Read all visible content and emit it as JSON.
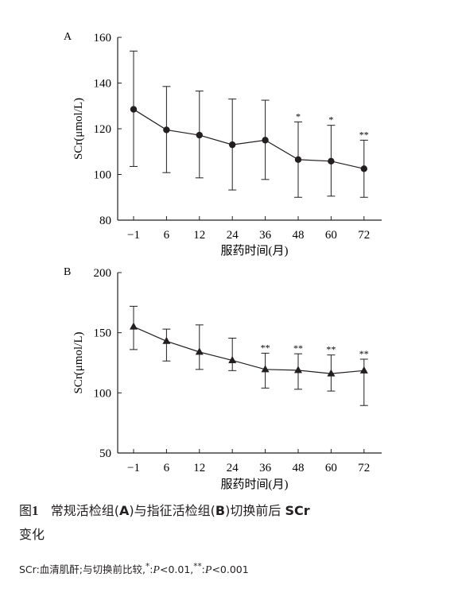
{
  "chart_data": [
    {
      "type": "line",
      "panel_label": "A",
      "marker": "circle",
      "xlabel": "服药时间(月)",
      "ylabel": "SCr(μmol/L)",
      "categories": [
        "−1",
        "6",
        "12",
        "24",
        "36",
        "48",
        "60",
        "72"
      ],
      "values": [
        128.5,
        119.5,
        117.2,
        113,
        115,
        106.5,
        105.8,
        102.5
      ],
      "error_upper": [
        154,
        138.5,
        136.5,
        133,
        132.5,
        123,
        121.5,
        115
      ],
      "error_lower": [
        103.5,
        100.8,
        98.5,
        93.2,
        97.8,
        90,
        90.5,
        90
      ],
      "significance": [
        "",
        "",
        "",
        "",
        "",
        "*",
        "*",
        "**"
      ],
      "ylim": [
        80,
        160
      ],
      "yticks": [
        "80",
        "100",
        "120",
        "140",
        "160"
      ],
      "grid": false
    },
    {
      "type": "line",
      "panel_label": "B",
      "marker": "triangle",
      "xlabel": "服药时间(月)",
      "ylabel": "SCr(μmol/L)",
      "categories": [
        "−1",
        "6",
        "12",
        "24",
        "36",
        "48",
        "60",
        "72"
      ],
      "values": [
        155,
        143,
        134,
        127,
        119.5,
        118.8,
        116,
        118.5
      ],
      "error_upper": [
        172,
        153,
        156.5,
        145.5,
        133,
        132.5,
        131.5,
        128
      ],
      "error_lower": [
        136,
        126.5,
        119.5,
        118.5,
        104,
        103,
        101.5,
        89.5
      ],
      "significance": [
        "",
        "",
        "",
        "",
        "**",
        "**",
        "**",
        "**"
      ],
      "ylim": [
        50,
        200
      ],
      "yticks": [
        "50",
        "100",
        "150",
        "200"
      ],
      "grid": false
    }
  ],
  "caption": {
    "fig_label": "图",
    "fig_num": "1",
    "text_a": "常规活检组(",
    "a": "A",
    "text_b": ")与指征活检组(",
    "b": "B",
    "text_c": ")切换前后",
    "scr": "SCr",
    "line2": "变化"
  },
  "note": {
    "prefix": "SCr:血清肌酐;与切换前比较,",
    "sig1_marker": "*",
    "p_letter": "P",
    "sig1_value": "<0.01,",
    "sig2_marker": "**",
    "sig2_value": "<0.001"
  }
}
